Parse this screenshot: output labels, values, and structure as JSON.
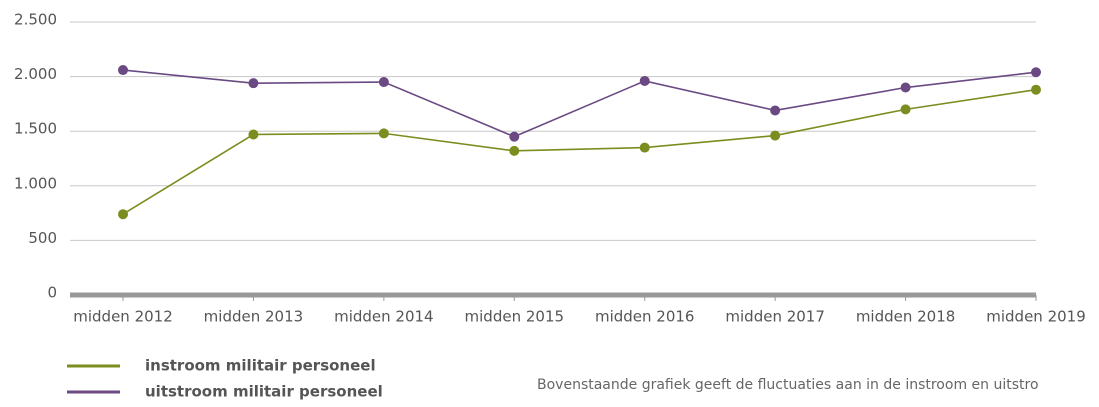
{
  "chart_data": {
    "type": "line",
    "categories": [
      "midden 2012",
      "midden 2013",
      "midden 2014",
      "midden 2015",
      "midden 2016",
      "midden 2017",
      "midden 2018",
      "midden 2019"
    ],
    "series": [
      {
        "name": "instroom militair personeel",
        "color": "#7b8d1f",
        "values": [
          740,
          1470,
          1480,
          1320,
          1350,
          1460,
          1700,
          1880
        ]
      },
      {
        "name": "uitstroom militair personeel",
        "color": "#6b4a83",
        "values": [
          2060,
          1940,
          1950,
          1450,
          1960,
          1690,
          1900,
          2040
        ]
      }
    ],
    "ylim": [
      0,
      2500
    ],
    "yticks": [
      0,
      500,
      {
        "value": 1000,
        "label": "1.000"
      },
      {
        "value": 1500,
        "label": "1.500"
      },
      {
        "value": 2000,
        "label": "2.000"
      },
      {
        "value": 2500,
        "label": "2.500"
      }
    ],
    "grid": true,
    "caption": "Bovenstaande grafiek geeft de fluctuaties aan in de instroom en uitstro"
  }
}
